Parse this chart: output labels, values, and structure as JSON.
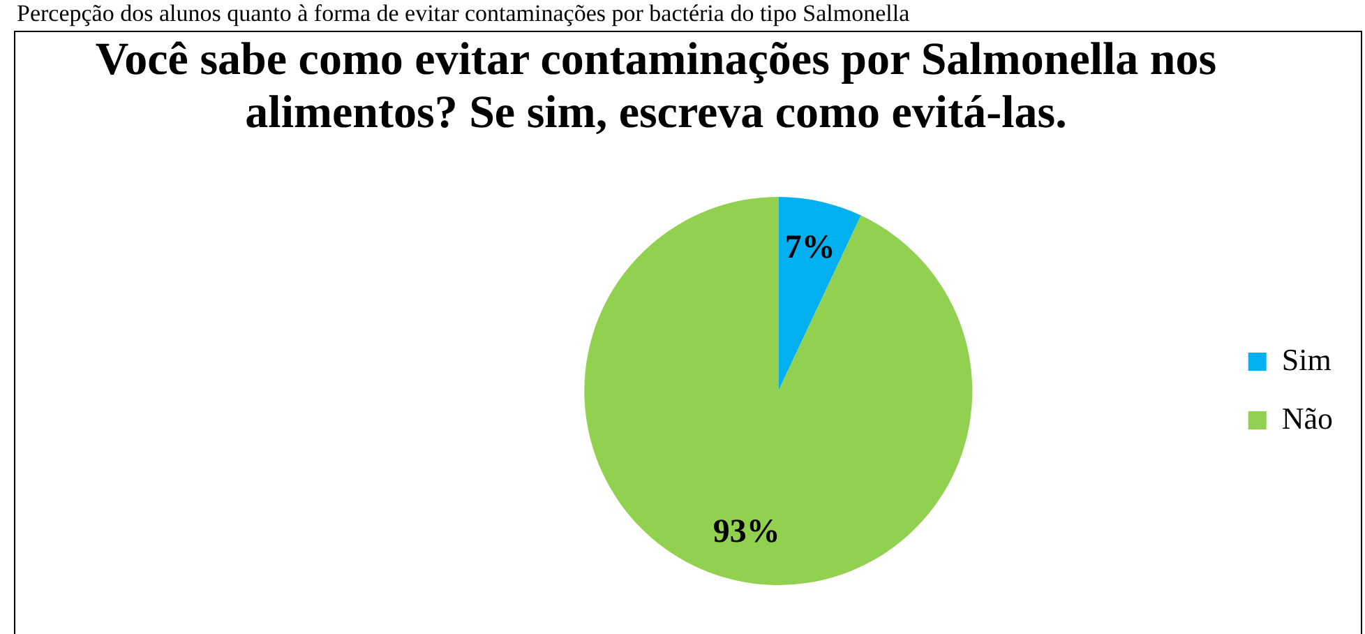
{
  "chart_data": {
    "type": "pie",
    "title": "Você sabe como evitar contaminações por Salmonella nos alimentos? Se sim, escreva como evitá-las.",
    "annotations": [
      "Percepção dos alunos quanto à forma de evitar contaminações por bactéria do tipo Salmonella"
    ],
    "categories": [
      "Sim",
      "Não"
    ],
    "values": [
      7,
      93
    ],
    "colors": [
      "#00b0f0",
      "#92d050"
    ],
    "value_labels": [
      "7%",
      "93%"
    ],
    "legend": "right"
  }
}
